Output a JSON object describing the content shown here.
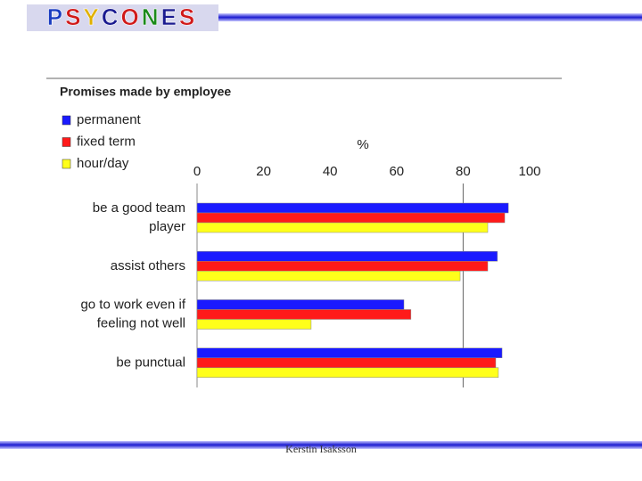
{
  "header": {
    "logo": "PSYCONES"
  },
  "footer": {
    "author": "Kerstin Isaksson"
  },
  "chart_data": {
    "type": "hbar",
    "title": "Promises made by employee",
    "xlabel": "%",
    "categories": [
      "be a good team\nplayer",
      "assist others",
      "go to work even if\nfeeling not well",
      "be punctual"
    ],
    "series": [
      {
        "name": "permanent",
        "color": "#1a1aff",
        "values": [
          93.6,
          90.3,
          62.2,
          91.7
        ]
      },
      {
        "name": "fixed term",
        "color": "#ff1a1a",
        "values": [
          92.5,
          87.4,
          64.3,
          89.8
        ]
      },
      {
        "name": "hour/day",
        "color": "#ffff1a",
        "values": [
          87.4,
          79.1,
          34.3,
          90.6
        ]
      }
    ],
    "xlim": [
      0,
      100
    ],
    "xticks": [
      0,
      20,
      40,
      60,
      80,
      100
    ],
    "reference_line": 80,
    "legend": "top-left"
  }
}
